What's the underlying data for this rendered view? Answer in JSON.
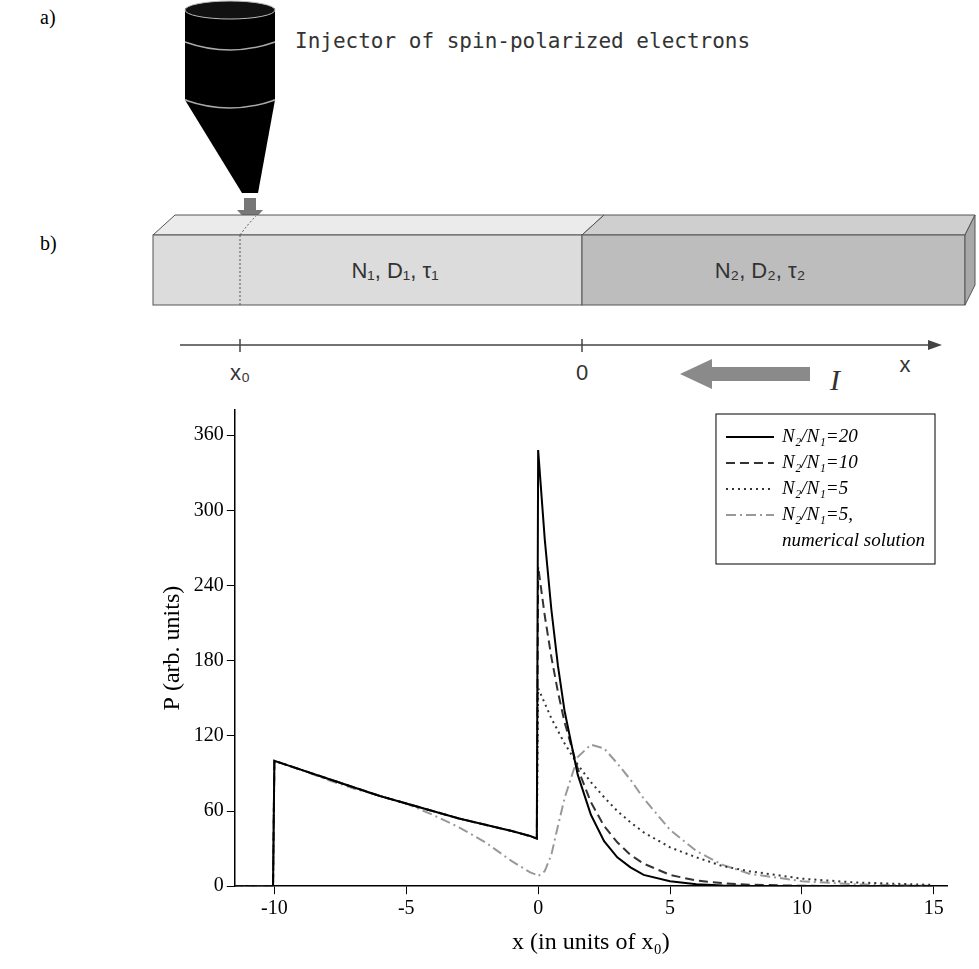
{
  "panels": [
    "a)",
    "b)"
  ],
  "diagram": {
    "injector_label": "Injector of spin-polarized electrons",
    "regions": [
      "N₁, D₁, τ₁",
      "N₂, D₂, τ₂"
    ],
    "axis_ticks": [
      "x₀",
      "0"
    ],
    "axis_label": "x",
    "current_label": "I"
  },
  "chart_data": {
    "type": "line",
    "x_label": "x (in units of x₀)",
    "y_label": "P (arb. units)",
    "x": [
      -11.5,
      -10.05,
      -10,
      -9,
      -8,
      -7,
      -6,
      -5,
      -4,
      -3,
      -2,
      -1,
      -0.3,
      -0.05,
      0,
      0.25,
      0.5,
      0.75,
      1,
      1.5,
      2,
      2.5,
      3,
      3.5,
      4,
      5,
      6,
      7,
      8,
      10,
      12,
      15
    ],
    "series": [
      {
        "name": "N₂/N₁=20",
        "color": "#000000",
        "line_style": "solid",
        "values": [
          0,
          0,
          100,
          93,
          86,
          79,
          72,
          66,
          60,
          54,
          49,
          44,
          40,
          38,
          348,
          277,
          221,
          176,
          140,
          89,
          57,
          36,
          23,
          15,
          9,
          4,
          1.5,
          0.6,
          0.2,
          0,
          0,
          0
        ]
      },
      {
        "name": "N₂/N₁=10",
        "color": "#333333",
        "line_style": "dashed",
        "values": [
          0,
          0,
          100,
          93,
          86,
          79,
          72,
          66,
          60,
          54,
          49,
          44,
          40,
          38,
          255,
          216,
          183,
          155,
          131,
          94,
          67,
          48,
          35,
          25,
          18,
          9,
          4.5,
          2.4,
          1.2,
          0.3,
          0.1,
          0
        ]
      },
      {
        "name": "N₂/N₁=5",
        "color": "#333333",
        "line_style": "dotted",
        "values": [
          0,
          0,
          100,
          93,
          86,
          79,
          72,
          66,
          60,
          54,
          49,
          44,
          40,
          38,
          158,
          146,
          134,
          124,
          114,
          97,
          83,
          71,
          60,
          51,
          43,
          31,
          23,
          16,
          12,
          6,
          3,
          1
        ]
      },
      {
        "name": "N₂/N₁=5, numerical solution",
        "color": "#999999",
        "line_style": "dashdot",
        "values": [
          0,
          0,
          100,
          93,
          85,
          78,
          72,
          66,
          57,
          47,
          35,
          20,
          11,
          9,
          8,
          12,
          25,
          48,
          70,
          103,
          113,
          110,
          98,
          85,
          70,
          45,
          28,
          17,
          10,
          4,
          1.5,
          0.3
        ]
      }
    ],
    "xlim": [
      -11.5,
      15.5
    ],
    "xticks": [
      -10,
      -5,
      0,
      5,
      10,
      15
    ],
    "ylim": [
      0,
      380
    ],
    "yticks": [
      0,
      60,
      120,
      180,
      240,
      300,
      360
    ],
    "grid": false,
    "legend": "upper right"
  }
}
